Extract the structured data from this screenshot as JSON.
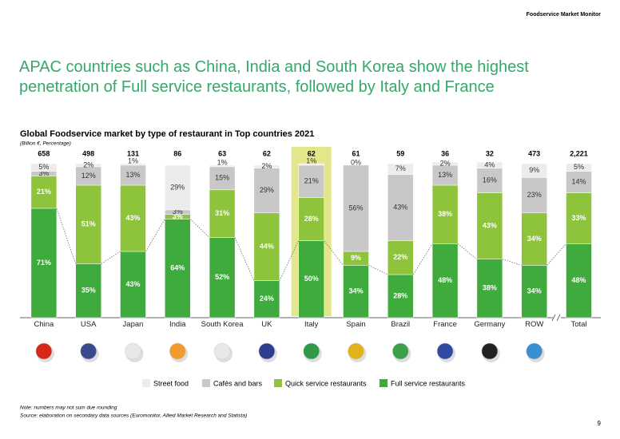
{
  "header": "Foodservice Market Monitor",
  "headline": "APAC countries such as China, India and South Korea show the highest penetration of Full service restaurants, followed by Italy and France",
  "note": "Note: numbers may not sum due rounding",
  "source": "Source: elaboration on secondary data sources (Euromonitor, Allied Market Research and Statista)",
  "page_number": "9",
  "chart_data": {
    "type": "bar",
    "stacked": true,
    "title": "Global Foodservice market by type of restaurant in Top countries 2021",
    "subtitle": "(Billion €, Percentage)",
    "categories": [
      "China",
      "USA",
      "Japan",
      "India",
      "South Korea",
      "UK",
      "Italy",
      "Spain",
      "Brazil",
      "France",
      "Germany",
      "ROW",
      "Total"
    ],
    "totals": {
      "values": [
        658,
        498,
        131,
        86,
        63,
        62,
        62,
        61,
        59,
        36,
        32,
        473,
        2221
      ],
      "value_labels": [
        "658",
        "498",
        "131",
        "86",
        "63",
        "62",
        "62",
        "61",
        "59",
        "36",
        "32",
        "473",
        "2,221"
      ]
    },
    "highlight": "Italy",
    "ylim": [
      0,
      100
    ],
    "series": [
      {
        "name": "Street food",
        "color": "#ececec",
        "values": [
          5,
          2,
          1,
          29,
          1,
          2,
          1,
          0,
          7,
          2,
          4,
          9,
          5
        ],
        "value_labels": [
          "5%",
          "2%",
          "1%",
          "29%",
          "1%",
          "2%",
          "1%",
          "0%",
          "7%",
          "2%",
          "4%",
          "9%",
          "5%"
        ]
      },
      {
        "name": "Cafés and bars",
        "color": "#c9c7c7",
        "values": [
          3,
          12,
          13,
          3,
          15,
          29,
          21,
          56,
          43,
          13,
          16,
          23,
          14
        ],
        "value_labels": [
          "3%",
          "12%",
          "13%",
          "3%",
          "15%",
          "29%",
          "21%",
          "56%",
          "43%",
          "13%",
          "16%",
          "23%",
          "14%"
        ]
      },
      {
        "name": "Quick service restaurants",
        "color": "#8dc43c",
        "values": [
          21,
          51,
          43,
          3,
          31,
          44,
          28,
          9,
          22,
          38,
          43,
          34,
          33
        ],
        "value_labels": [
          "21%",
          "51%",
          "43%",
          "3%",
          "31%",
          "44%",
          "28%",
          "9%",
          "22%",
          "38%",
          "43%",
          "34%",
          "33%"
        ]
      },
      {
        "name": "Full service restaurants",
        "color": "#3fab3c",
        "values": [
          71,
          35,
          43,
          64,
          52,
          24,
          50,
          34,
          28,
          48,
          38,
          34,
          48
        ],
        "value_labels": [
          "71%",
          "35%",
          "43%",
          "64%",
          "52%",
          "24%",
          "50%",
          "34%",
          "28%",
          "48%",
          "38%",
          "34%",
          "48%"
        ]
      }
    ]
  }
}
